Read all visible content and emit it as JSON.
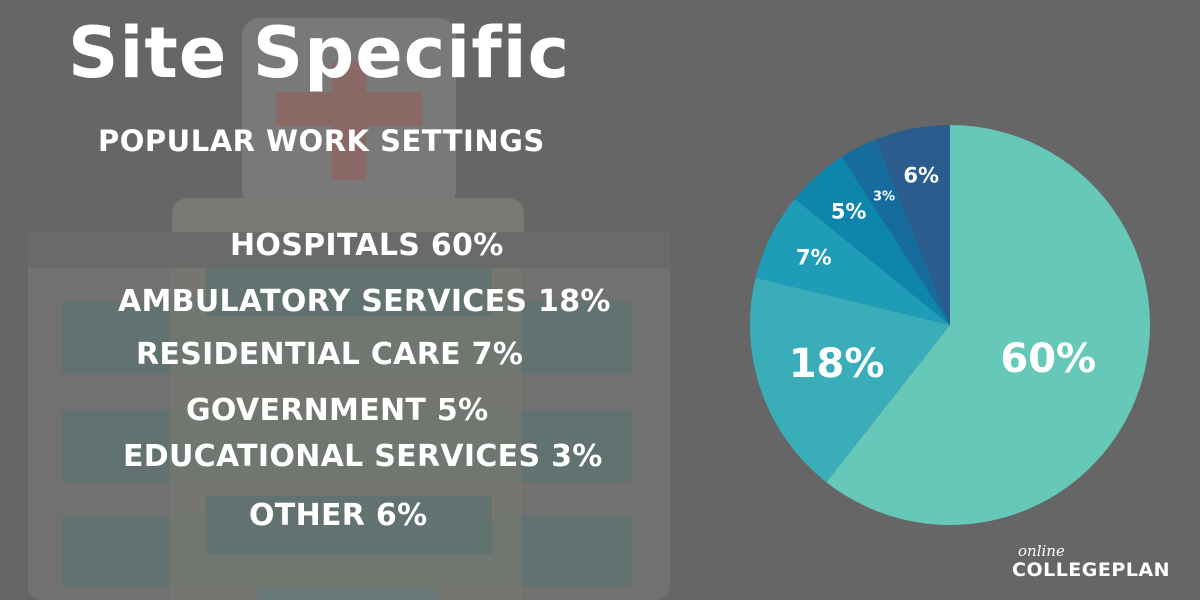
{
  "header": {
    "title": "Site Specific",
    "subtitle": "POPULAR WORK SETTINGS"
  },
  "legend": [
    {
      "label": "HOSPITALS 60%"
    },
    {
      "label": "AMBULATORY SERVICES 18%"
    },
    {
      "label": "RESIDENTIAL CARE 7%"
    },
    {
      "label": "GOVERNMENT 5%"
    },
    {
      "label": "EDUCATIONAL SERVICES 3%"
    },
    {
      "label": "OTHER 6%"
    }
  ],
  "chart_data": {
    "type": "pie",
    "start_angle": "12 o'clock",
    "direction": "clockwise",
    "slices": [
      {
        "value": 60,
        "label": "60%",
        "color": "#66c8b8"
      },
      {
        "value": 18,
        "label": "18%",
        "color": "#3aaeb8"
      },
      {
        "value": 7,
        "label": "7%",
        "color": "#1f9db8"
      },
      {
        "value": 5,
        "label": "5%",
        "color": "#0e86ac"
      },
      {
        "value": 3,
        "label": "3%",
        "color": "#166c9c"
      },
      {
        "value": 6,
        "label": "6%",
        "color": "#2b5c8e"
      }
    ]
  },
  "brand": {
    "small": "online",
    "big": "COLLEGEPLAN"
  },
  "colors": {
    "background": "#666666",
    "text": "#ffffff"
  }
}
